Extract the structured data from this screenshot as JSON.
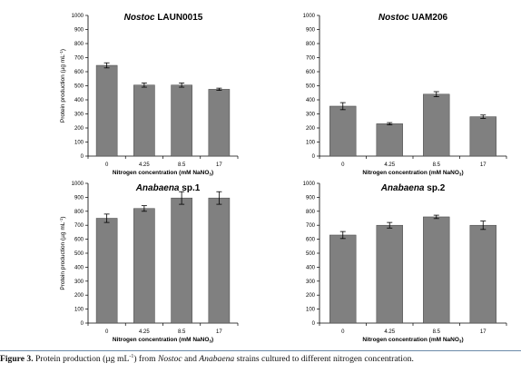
{
  "chart_data": [
    {
      "type": "bar",
      "title_italic": "Nostoc",
      "title_rest": " LAUN0015",
      "xlabel": "Nitrogen concentration (mM NaNO",
      "xlabel_sub": "3",
      "xlabel_end": ")",
      "ylabel": "Protein production (µg mL",
      "ylabel_sup": "-1",
      "ylabel_end": ")",
      "categories": [
        "0",
        "4.25",
        "8.5",
        "17"
      ],
      "values": [
        645,
        505,
        505,
        475
      ],
      "errors": [
        18,
        15,
        15,
        8
      ],
      "ylim": [
        0,
        1000
      ],
      "yticks": [
        "0",
        "100",
        "200",
        "300",
        "400",
        "500",
        "600",
        "700",
        "800",
        "900",
        "1000"
      ],
      "bar_color": "#808080",
      "grid": false
    },
    {
      "type": "bar",
      "title_italic": "Nostoc",
      "title_rest": " UAM206",
      "xlabel": "Nitrogen concentration (mM NaNO",
      "xlabel_sub": "3",
      "xlabel_end": ")",
      "ylabel": "",
      "categories": [
        "0",
        "4.25",
        "8.5",
        "17"
      ],
      "values": [
        355,
        230,
        440,
        280
      ],
      "errors": [
        25,
        8,
        18,
        12
      ],
      "ylim": [
        0,
        1000
      ],
      "yticks": [
        "0",
        "100",
        "200",
        "300",
        "400",
        "500",
        "600",
        "700",
        "800",
        "900",
        "1000"
      ],
      "bar_color": "#808080",
      "grid": false
    },
    {
      "type": "bar",
      "title_italic": "Anabaena",
      "title_rest": " sp.1",
      "xlabel": "Nitrogen concentration (mM NaNO",
      "xlabel_sub": "3",
      "xlabel_end": ")",
      "ylabel": "Protein production (µg mL",
      "ylabel_sup": "-1",
      "ylabel_end": ")",
      "categories": [
        "0",
        "4.25",
        "8.5",
        "17"
      ],
      "values": [
        750,
        820,
        895,
        895
      ],
      "errors": [
        30,
        20,
        45,
        45
      ],
      "ylim": [
        0,
        1000
      ],
      "yticks": [
        "0",
        "100",
        "200",
        "300",
        "400",
        "500",
        "600",
        "700",
        "800",
        "900",
        "1000"
      ],
      "bar_color": "#808080",
      "grid": false
    },
    {
      "type": "bar",
      "title_italic": "Anabaena",
      "title_rest": " sp.2",
      "xlabel": "Nitrogen concentration (mM NaNO",
      "xlabel_sub": "3",
      "xlabel_end": ")",
      "ylabel": "",
      "categories": [
        "0",
        "4.25",
        "8.5",
        "17"
      ],
      "values": [
        630,
        700,
        760,
        700
      ],
      "errors": [
        25,
        20,
        12,
        30
      ],
      "ylim": [
        0,
        1000
      ],
      "yticks": [
        "0",
        "100",
        "200",
        "300",
        "400",
        "500",
        "600",
        "700",
        "800",
        "900",
        "1000"
      ],
      "bar_color": "#808080",
      "grid": false
    }
  ],
  "caption": {
    "label": "Figure 3.",
    "t1": " Protein production (µg mL",
    "sup": "-1",
    "t2": ") from ",
    "it1": "Nostoc",
    "t3": " and ",
    "it2": "Anabaena",
    "t4": " strains cultured to different nitrogen concentration."
  }
}
